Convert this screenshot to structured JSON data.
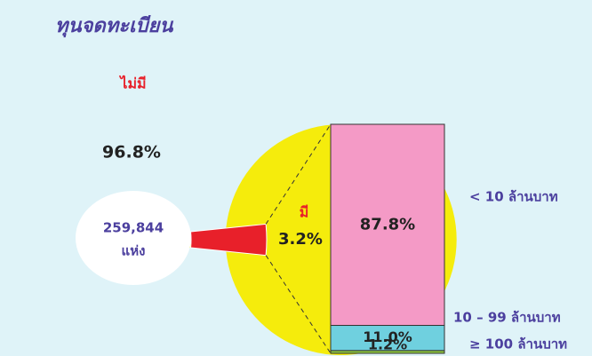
{
  "chart_data": {
    "type": "pie",
    "title": "ทุนจดทะเบียน",
    "categories": [
      "ไม่มี",
      "มี"
    ],
    "values": [
      96.8,
      3.2
    ],
    "value_labels": [
      "96.8%",
      "3.2%"
    ],
    "colors": [
      "#f5ec0c",
      "#e8202a"
    ],
    "center_label": [
      "259,844",
      "แห่ง"
    ],
    "bar": {
      "categories": [
        "< 10 ล้านบาท",
        "10 – 99 ล้านบาท",
        "≥ 100 ล้านบาท"
      ],
      "values": [
        87.8,
        11.0,
        1.2
      ],
      "value_labels": [
        "87.8%",
        "11.0%",
        "1.2%"
      ],
      "colors": [
        "#f49ac6",
        "#6fd0df",
        "#8dc63f"
      ]
    }
  }
}
